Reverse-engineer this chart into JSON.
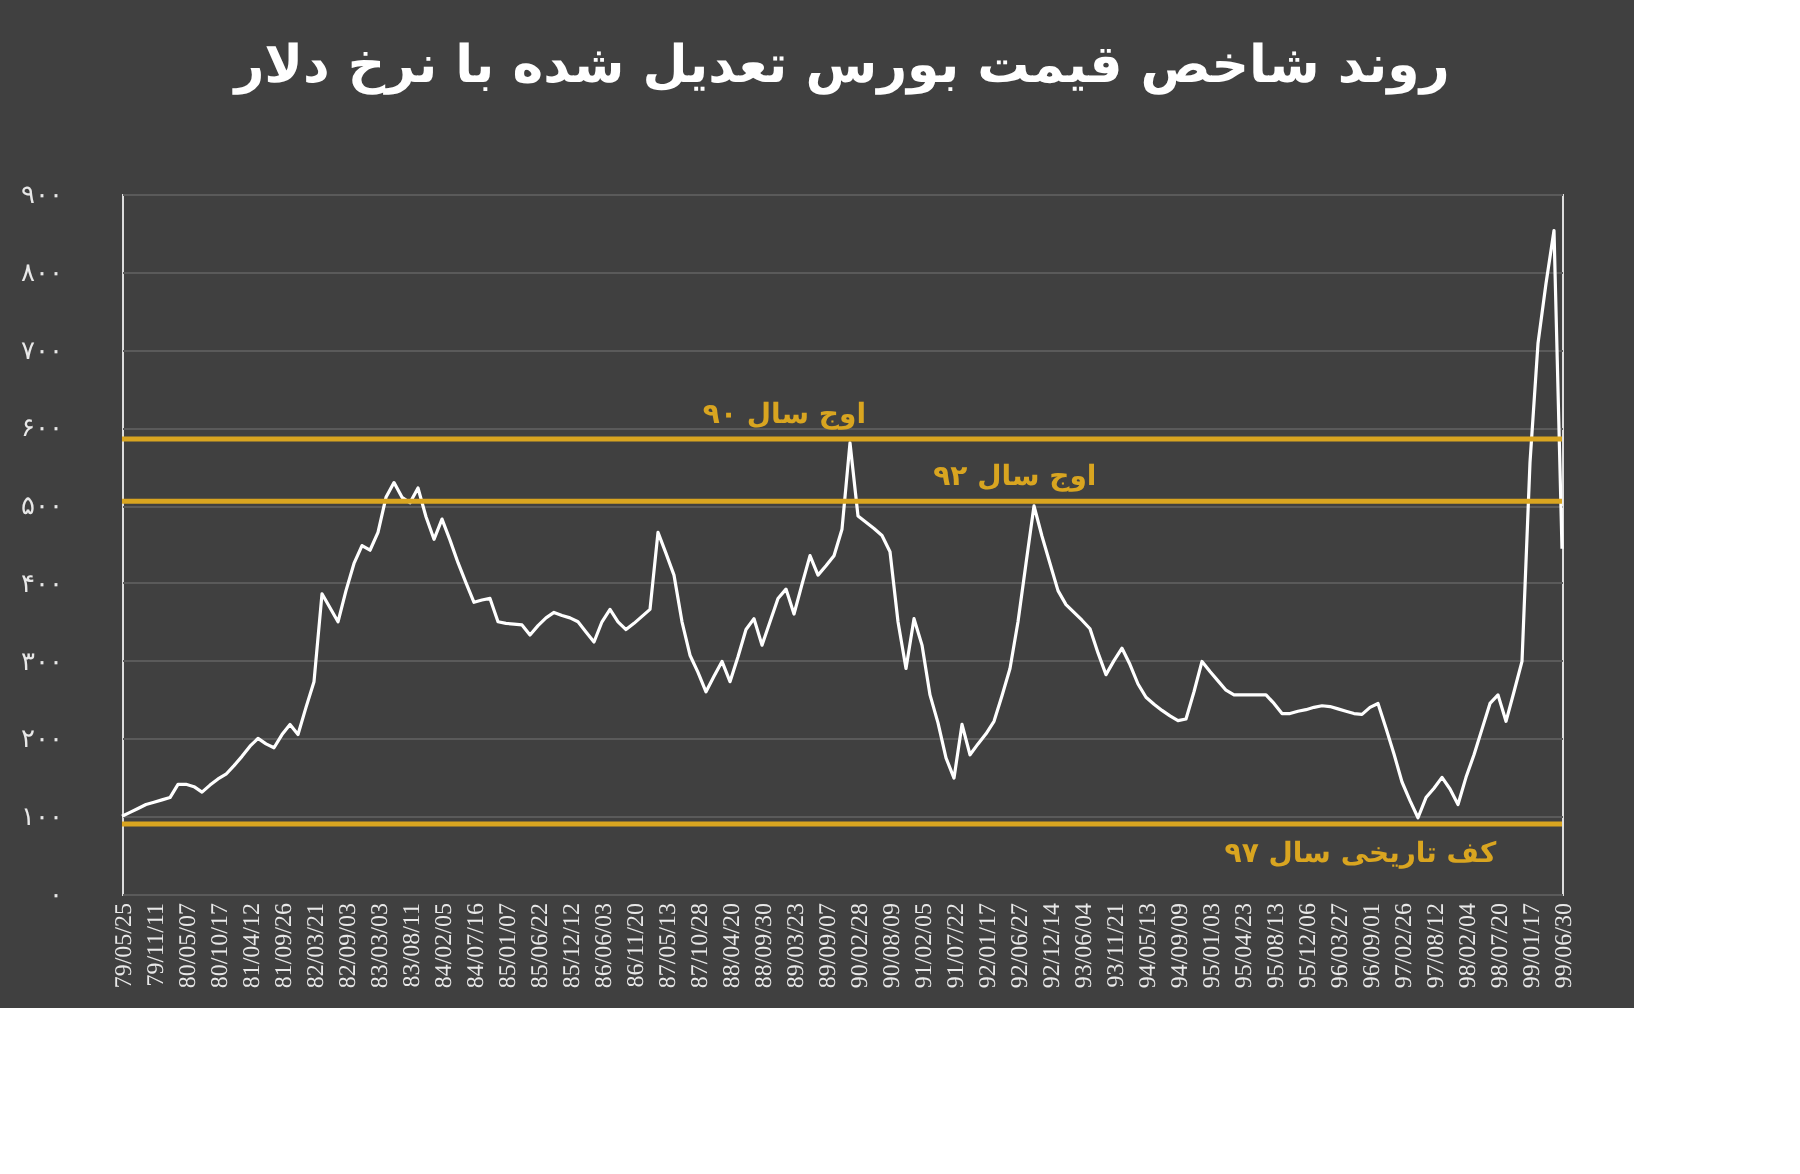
{
  "chart_data": {
    "type": "line",
    "title": "روند شاخص قیمت بورس تعدیل شده با نرخ دلار",
    "categories": [
      "79/05/25",
      null,
      null,
      null,
      "79/11/11",
      null,
      null,
      null,
      "80/05/07",
      null,
      null,
      null,
      "80/10/17",
      null,
      null,
      null,
      "81/04/12",
      null,
      null,
      null,
      "81/09/26",
      null,
      null,
      null,
      "82/03/21",
      null,
      null,
      null,
      "82/09/03",
      null,
      null,
      null,
      "83/03/03",
      null,
      null,
      null,
      "83/08/11",
      null,
      null,
      null,
      "84/02/05",
      null,
      null,
      null,
      "84/07/16",
      null,
      null,
      null,
      "85/01/07",
      null,
      null,
      null,
      "85/06/22",
      null,
      null,
      null,
      "85/12/12",
      null,
      null,
      null,
      "86/06/03",
      null,
      null,
      null,
      "86/11/20",
      null,
      null,
      null,
      "87/05/13",
      null,
      null,
      null,
      "87/10/28",
      null,
      null,
      null,
      "88/04/20",
      null,
      null,
      null,
      "88/09/30",
      null,
      null,
      null,
      "89/03/23",
      null,
      null,
      null,
      "89/09/07",
      null,
      null,
      null,
      "90/02/28",
      null,
      null,
      null,
      "90/08/09",
      null,
      null,
      null,
      "91/02/05",
      null,
      null,
      null,
      "91/07/22",
      null,
      null,
      null,
      "92/01/17",
      null,
      null,
      null,
      "92/06/27",
      null,
      null,
      null,
      "92/12/14",
      null,
      null,
      null,
      "93/06/04",
      null,
      null,
      null,
      "93/11/21",
      null,
      null,
      null,
      "94/05/13",
      null,
      null,
      null,
      "94/09/09",
      null,
      null,
      null,
      "95/01/03",
      null,
      null,
      null,
      "95/04/23",
      null,
      null,
      null,
      "95/08/13",
      null,
      null,
      null,
      "95/12/06",
      null,
      null,
      null,
      "96/03/27",
      null,
      null,
      null,
      "96/09/01",
      null,
      null,
      null,
      "97/02/26",
      null,
      null,
      null,
      "97/08/12",
      null,
      null,
      null,
      "98/02/04",
      null,
      null,
      null,
      "98/07/20",
      null,
      null,
      null,
      "99/01/17",
      null,
      null,
      null,
      "99/06/30"
    ],
    "series": [
      {
        "color": "#ffffff",
        "values": [
          100,
          105,
          110,
          115,
          118,
          121,
          124,
          141,
          141,
          138,
          131,
          140,
          148,
          154,
          165,
          177,
          190,
          200,
          193,
          188,
          205,
          218,
          205,
          240,
          273,
          386,
          368,
          350,
          390,
          425,
          448,
          442,
          465,
          510,
          529,
          510,
          503,
          522,
          485,
          456,
          482,
          455,
          426,
          400,
          375,
          378,
          380,
          350,
          348,
          347,
          346,
          333,
          345,
          355,
          362,
          358,
          355,
          350,
          337,
          324,
          350,
          366,
          350,
          340,
          348,
          357,
          366,
          465,
          438,
          410,
          350,
          307,
          285,
          260,
          280,
          299,
          273,
          305,
          340,
          354,
          320,
          350,
          380,
          392,
          360,
          398,
          435,
          410,
          422,
          435,
          469,
          580,
          486,
          478,
          470,
          461,
          440,
          350,
          290,
          354,
          320,
          256,
          220,
          175,
          149,
          218,
          179,
          193,
          206,
          222,
          255,
          290,
          350,
          425,
          499,
          460,
          425,
          390,
          372,
          362,
          352,
          341,
          310,
          282,
          300,
          316,
          295,
          270,
          253,
          244,
          236,
          229,
          223,
          225,
          260,
          299,
          286,
          274,
          262,
          256,
          256,
          256,
          256,
          256,
          245,
          232,
          232,
          235,
          237,
          240,
          242,
          241,
          238,
          235,
          232,
          231,
          240,
          245,
          213,
          180,
          144,
          120,
          98,
          124,
          136,
          150,
          135,
          115,
          150,
          179,
          212,
          245,
          256,
          222,
          260,
          299,
          555,
          708,
          785,
          853,
          444
        ]
      }
    ],
    "ylim": [
      0,
      900
    ],
    "yticks": [
      {
        "value": 0,
        "label": "۰"
      },
      {
        "value": 100,
        "label": "۱۰۰"
      },
      {
        "value": 200,
        "label": "۲۰۰"
      },
      {
        "value": 300,
        "label": "۳۰۰"
      },
      {
        "value": 400,
        "label": "۴۰۰"
      },
      {
        "value": 500,
        "label": "۵۰۰"
      },
      {
        "value": 600,
        "label": "۶۰۰"
      },
      {
        "value": 700,
        "label": "۷۰۰"
      },
      {
        "value": 800,
        "label": "۸۰۰"
      },
      {
        "value": 900,
        "label": "۹۰۰"
      }
    ],
    "grid": "y",
    "line_style": "solid",
    "ref_lines": [
      {
        "axis": "y",
        "value": 585,
        "label": "اوج سال ۹۰",
        "color": "#d9a520"
      },
      {
        "axis": "y",
        "value": 505,
        "label": "اوج سال ۹۲",
        "color": "#d9a520"
      },
      {
        "axis": "y",
        "value": 90,
        "label": "کف تاریخی سال ۹۷",
        "color": "#d9a520"
      }
    ]
  }
}
